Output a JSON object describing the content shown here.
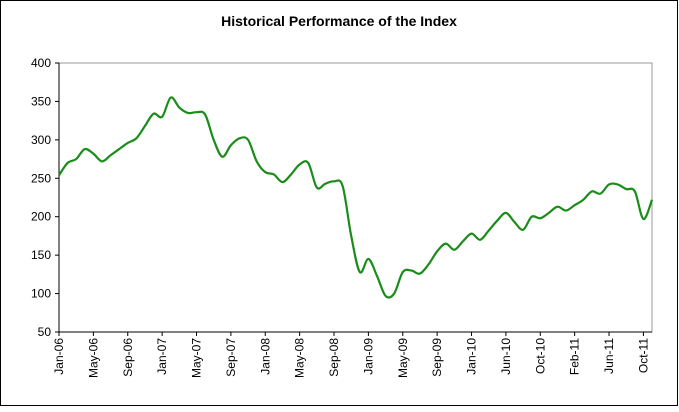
{
  "chart_data": {
    "type": "line",
    "title": "Historical Performance of the Index",
    "categories": [
      "Jan-06",
      null,
      null,
      null,
      "May-06",
      null,
      null,
      null,
      "Sep-06",
      null,
      null,
      null,
      "Jan-07",
      null,
      null,
      null,
      "May-07",
      null,
      null,
      null,
      "Sep-07",
      null,
      null,
      null,
      "Jan-08",
      null,
      null,
      null,
      "May-08",
      null,
      null,
      null,
      "Sep-08",
      null,
      null,
      null,
      "Jan-09",
      null,
      null,
      null,
      "May-09",
      null,
      null,
      null,
      "Sep-09",
      null,
      null,
      null,
      "Jan-10",
      null,
      null,
      null,
      "Jun-10",
      null,
      null,
      null,
      "Oct-10",
      null,
      null,
      null,
      "Feb-11",
      null,
      null,
      null,
      "Jun-11",
      null,
      null,
      null,
      "Oct-11",
      null
    ],
    "series": [
      {
        "color": "#1a8c1a",
        "values": [
          254,
          270,
          275,
          288,
          282,
          272,
          280,
          288,
          296,
          302,
          318,
          334,
          330,
          355,
          342,
          335,
          336,
          333,
          300,
          278,
          293,
          302,
          300,
          272,
          258,
          255,
          245,
          255,
          268,
          270,
          238,
          243,
          246,
          240,
          175,
          128,
          145,
          123,
          97,
          100,
          128,
          130,
          126,
          138,
          155,
          165,
          157,
          168,
          178,
          170,
          182,
          195,
          205,
          193,
          183,
          200,
          198,
          205,
          213,
          208,
          215,
          222,
          233,
          230,
          242,
          242,
          236,
          233,
          197,
          222
        ]
      }
    ],
    "ylim": [
      50,
      400
    ],
    "yticks": [
      50,
      100,
      150,
      200,
      250,
      300,
      350,
      400
    ]
  }
}
